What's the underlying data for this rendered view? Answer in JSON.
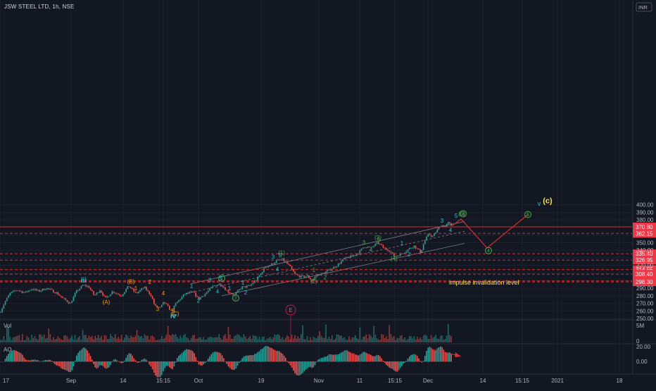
{
  "header": {
    "symbol": "JSW STEEL LTD, 1h, NSE"
  },
  "colors": {
    "bg": "#131722",
    "grid": "#1e222d",
    "axis_text": "#b2b5be",
    "up": "#26a69a",
    "down": "#ef5350",
    "cyan": "#26c6da",
    "green": "#4caf50",
    "orange": "#ff9800",
    "yellow": "#f5e642",
    "level_line": "#d32f2f",
    "level_label_bg": "#f23645",
    "projection": "#d32f2f",
    "channel": "#9598a1",
    "ao_up": "#26a69a",
    "ao_down": "#ef5350"
  },
  "chart_data": {
    "type": "candlestick",
    "currency_badge": "INR",
    "price_axis": {
      "ylim": [
        245,
        403
      ],
      "ticks": [
        250,
        260,
        270,
        280,
        290,
        300,
        310,
        320,
        330,
        340,
        350,
        360,
        380,
        390,
        400
      ]
    },
    "time_axis": {
      "labels": [
        "17",
        "Sep",
        "14",
        "15:15",
        "Oct",
        "19",
        "Nov",
        "11",
        "15:15",
        "Dec",
        "14",
        "15:15",
        "2021",
        "18"
      ]
    },
    "price_path": [
      [
        0,
        258
      ],
      [
        7,
        272
      ],
      [
        14,
        283
      ],
      [
        24,
        288
      ],
      [
        35,
        284
      ],
      [
        45,
        289
      ],
      [
        55,
        286
      ],
      [
        66,
        290
      ],
      [
        80,
        284
      ],
      [
        90,
        276
      ],
      [
        100,
        270
      ],
      [
        108,
        285
      ],
      [
        118,
        294
      ],
      [
        126,
        292
      ],
      [
        134,
        280
      ],
      [
        142,
        288
      ],
      [
        150,
        276
      ],
      [
        160,
        286
      ],
      [
        172,
        280
      ],
      [
        183,
        293
      ],
      [
        193,
        283
      ],
      [
        205,
        291
      ],
      [
        215,
        280
      ],
      [
        220,
        266
      ],
      [
        228,
        264
      ],
      [
        233,
        272
      ],
      [
        238,
        266
      ],
      [
        244,
        259
      ],
      [
        250,
        270
      ],
      [
        262,
        282
      ],
      [
        274,
        285
      ],
      [
        282,
        276
      ],
      [
        292,
        283
      ],
      [
        303,
        293
      ],
      [
        313,
        296
      ],
      [
        323,
        286
      ],
      [
        333,
        281
      ],
      [
        343,
        291
      ],
      [
        355,
        293
      ],
      [
        365,
        302
      ],
      [
        377,
        318
      ],
      [
        385,
        321
      ],
      [
        393,
        326
      ],
      [
        401,
        328
      ],
      [
        407,
        323
      ],
      [
        412,
        318
      ],
      [
        419,
        308
      ],
      [
        428,
        305
      ],
      [
        437,
        306
      ],
      [
        443,
        300
      ],
      [
        450,
        307
      ],
      [
        460,
        310
      ],
      [
        470,
        315
      ],
      [
        480,
        321
      ],
      [
        490,
        329
      ],
      [
        500,
        332
      ],
      [
        510,
        337
      ],
      [
        517,
        345
      ],
      [
        527,
        343
      ],
      [
        537,
        350
      ],
      [
        545,
        343
      ],
      [
        553,
        340
      ],
      [
        560,
        332
      ],
      [
        570,
        335
      ],
      [
        578,
        340
      ],
      [
        588,
        346
      ],
      [
        598,
        337
      ],
      [
        603,
        352
      ],
      [
        609,
        361
      ],
      [
        615,
        358
      ],
      [
        620,
        365
      ],
      [
        626,
        373
      ],
      [
        632,
        371
      ],
      [
        637,
        376
      ],
      [
        642,
        372
      ]
    ],
    "price_levels": [
      {
        "value": "370.80",
        "price": 370.8,
        "style": "solid"
      },
      {
        "value": "362.15",
        "price": 362.15,
        "style": "dashed"
      },
      {
        "value": "335.40",
        "price": 335.4,
        "style": "dashed"
      },
      {
        "value": "326.95",
        "price": 326.95,
        "style": "dashed"
      },
      {
        "value": "314.55",
        "price": 314.55,
        "style": "dashed"
      },
      {
        "value": "308.40",
        "price": 308.4,
        "style": "dashed"
      },
      {
        "value": "299.60",
        "price": 299.6,
        "style": "dashed"
      },
      {
        "value": "298.30",
        "price": 298.3,
        "style": "dashed"
      }
    ],
    "channel_lines": [
      {
        "from": [
          272,
          296
        ],
        "to": [
          660,
          378
        ]
      },
      {
        "from": [
          265,
          283
        ],
        "to": [
          660,
          365
        ]
      },
      {
        "from": [
          315,
          280
        ],
        "to": [
          660,
          349
        ]
      }
    ],
    "projection": [
      [
        642,
        372
      ],
      [
        655,
        381
      ],
      [
        692,
        343
      ],
      [
        750,
        387
      ]
    ],
    "wave_labels": [
      {
        "text": "iii",
        "x": 119,
        "price": 297.5,
        "color": "cyan",
        "size": 10
      },
      {
        "text": "iv",
        "x": 246,
        "price": 250.5,
        "color": "cyan",
        "size": 10
      },
      {
        "text": "(c)",
        "x": 778,
        "price": 402,
        "color": "yellow",
        "size": 11
      },
      {
        "text": "v",
        "x": 766,
        "price": 398.5,
        "color": "cyan",
        "size": 9
      },
      {
        "text": "(B)",
        "x": 186,
        "price": 296,
        "color": "orange",
        "size": 8
      },
      {
        "text": "(A)",
        "x": 151,
        "price": 269,
        "color": "orange",
        "size": 8
      },
      {
        "text": "(C)",
        "x": 249,
        "price": 254,
        "color": "orange",
        "size": 8
      },
      {
        "text": "1",
        "x": 193,
        "price": 287.5,
        "color": "orange",
        "size": 8
      },
      {
        "text": "2",
        "x": 213,
        "price": 295.5,
        "color": "orange",
        "size": 8
      },
      {
        "text": "3",
        "x": 224,
        "price": 260,
        "color": "orange",
        "size": 8
      },
      {
        "text": "4",
        "x": 232,
        "price": 281,
        "color": "orange",
        "size": 8
      },
      {
        "text": "5",
        "x": 246,
        "price": 257.5,
        "color": "orange",
        "size": 8
      },
      {
        "text": "1",
        "x": 272,
        "price": 290.5,
        "color": "cyan",
        "size": 8
      },
      {
        "text": "2",
        "x": 282,
        "price": 271,
        "color": "cyan",
        "size": 8
      },
      {
        "text": "3",
        "x": 298,
        "price": 298,
        "color": "cyan",
        "size": 8
      },
      {
        "text": "4",
        "x": 309,
        "price": 283,
        "color": "cyan",
        "size": 8
      },
      {
        "text": "5",
        "x": 314,
        "price": 300.5,
        "color": "cyan",
        "size": 8
      },
      {
        "text": "1",
        "x": 326,
        "price": 287.5,
        "color": "cyan",
        "size": 8
      },
      {
        "text": "2",
        "x": 349,
        "price": 281.5,
        "color": "cyan",
        "size": 8
      },
      {
        "text": "1",
        "x": 345,
        "price": 294.5,
        "color": "cyan",
        "size": 8
      },
      {
        "text": "3",
        "x": 388,
        "price": 328.5,
        "color": "cyan",
        "size": 8
      },
      {
        "text": "4",
        "x": 394,
        "price": 312.5,
        "color": "cyan",
        "size": 8
      },
      {
        "text": "5",
        "x": 398,
        "price": 331,
        "color": "cyan",
        "size": 8
      },
      {
        "text": "(1)",
        "x": 400,
        "price": 334,
        "color": "green",
        "size": 8
      },
      {
        "text": "1",
        "x": 446,
        "price": 311.5,
        "color": "green",
        "size": 8
      },
      {
        "text": "2",
        "x": 462,
        "price": 301.5,
        "color": "green",
        "size": 8
      },
      {
        "text": "(2)",
        "x": 446,
        "price": 296.5,
        "color": "green",
        "size": 8
      },
      {
        "text": "3",
        "x": 517,
        "price": 347.5,
        "color": "green",
        "size": 8
      },
      {
        "text": "4",
        "x": 527,
        "price": 338,
        "color": "green",
        "size": 8
      },
      {
        "text": "(3)",
        "x": 537,
        "price": 354,
        "color": "green",
        "size": 8
      },
      {
        "text": "5",
        "x": 538,
        "price": 351.5,
        "color": "green",
        "size": 8
      },
      {
        "text": "(4)",
        "x": 560,
        "price": 326.5,
        "color": "green",
        "size": 8
      },
      {
        "text": "1",
        "x": 571,
        "price": 346.5,
        "color": "cyan",
        "size": 8
      },
      {
        "text": "2",
        "x": 581,
        "price": 332.5,
        "color": "cyan",
        "size": 8
      },
      {
        "text": "3",
        "x": 628,
        "price": 376.5,
        "color": "cyan",
        "size": 8
      },
      {
        "text": "4",
        "x": 640,
        "price": 364,
        "color": "cyan",
        "size": 8
      },
      {
        "text": "5",
        "x": 648,
        "price": 383,
        "color": "cyan",
        "size": 8
      },
      {
        "text": "(5)",
        "x": 656,
        "price": 385.5,
        "color": "green",
        "size": 8
      },
      {
        "text": "impulse invalidation level",
        "x": 638,
        "price": 294.5,
        "color": "yellow",
        "size": 9,
        "anchor": "start"
      }
    ],
    "circled_labels": [
      {
        "text": "1",
        "x": 315,
        "price": 303
      },
      {
        "text": "2",
        "x": 335,
        "price": 277
      },
      {
        "text": "3",
        "x": 658,
        "price": 388
      },
      {
        "text": "4",
        "x": 694,
        "price": 339.5
      },
      {
        "text": "5",
        "x": 750,
        "price": 387
      }
    ],
    "event_marker": {
      "text": "E",
      "x": 413
    },
    "volume": {
      "label": "Vol",
      "ticks": [
        "5M",
        "0"
      ]
    },
    "ao": {
      "label": "AO",
      "ticks": [
        "20.00",
        "0.00"
      ]
    }
  }
}
